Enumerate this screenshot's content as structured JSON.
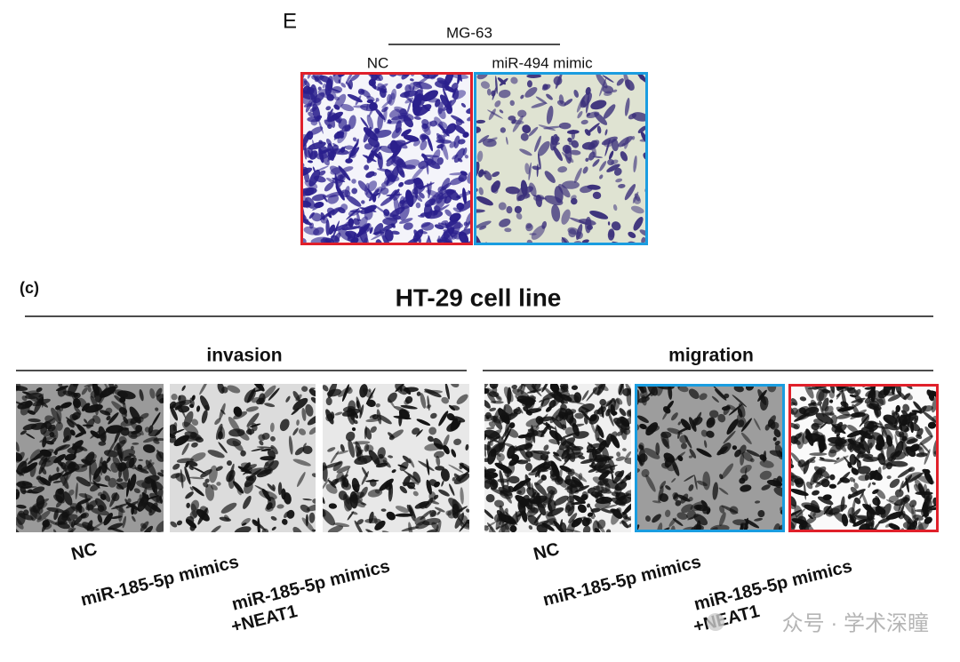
{
  "panel_e": {
    "label": "E",
    "cell_line": "MG-63",
    "conditions": [
      "NC",
      "miR-494 mimic"
    ]
  },
  "panel_c": {
    "label": "(c)",
    "title": "HT-29 cell line",
    "groups": [
      {
        "title": "invasion",
        "conditions": [
          [
            "NC"
          ],
          [
            "miR-185-5p mimics"
          ],
          [
            "miR-185-5p mimics",
            "+NEAT1"
          ]
        ]
      },
      {
        "title": "migration",
        "conditions": [
          [
            "NC"
          ],
          [
            "miR-185-5p mimics"
          ],
          [
            "miR-185-5p mimics",
            "+NEAT1"
          ]
        ]
      }
    ]
  },
  "watermark": "众号 · 学术深瞳"
}
